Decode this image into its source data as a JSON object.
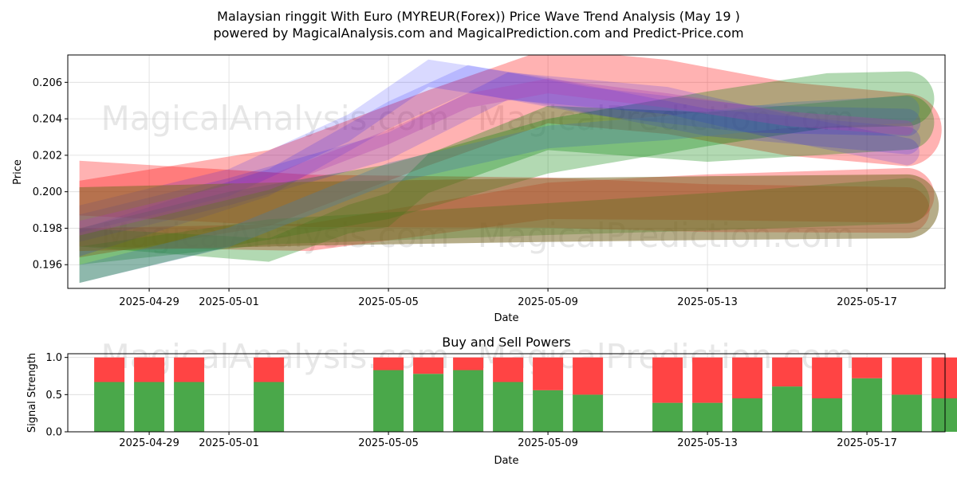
{
  "title_line1": "Malaysian ringgit With Euro (MYREUR(Forex)) Price Wave Trend Analysis (May 19 )",
  "title_line2": "powered by MagicalAnalysis.com and MagicalPrediction.com and Predict-Price.com",
  "watermarks": [
    "MagicalAnalysis.com",
    "MagicalPrediction.com"
  ],
  "colors": {
    "red": "#ff0000",
    "green": "#008000",
    "blue": "#0000ff",
    "olive": "#7a6a28",
    "steel": "#4a7aa0",
    "purple": "#b040b0",
    "buy": "#4aa84a",
    "sell": "#ff4444"
  },
  "chart_data": [
    {
      "type": "area",
      "title": "",
      "xlabel": "Date",
      "ylabel": "Price",
      "x_ticks": [
        "2025-04-29",
        "2025-05-01",
        "2025-05-05",
        "2025-05-09",
        "2025-05-13",
        "2025-05-17"
      ],
      "y_ticks": [
        "0.196",
        "0.198",
        "0.200",
        "0.202",
        "0.204",
        "0.206"
      ],
      "xlim": [
        "2025-04-26T23:00",
        "2025-05-18T23:00"
      ],
      "ylim": [
        0.1947,
        0.2075
      ],
      "grid": true,
      "series": [
        {
          "color": "red",
          "opacity": 0.3,
          "thick": [
            0.0042,
            0.004
          ],
          "x": [
            "2025-04-27T06:00",
            "2025-05-02",
            "2025-05-06",
            "2025-05-09",
            "2025-05-12",
            "2025-05-15",
            "2025-05-18"
          ],
          "y": [
            0.1985,
            0.2002,
            0.2035,
            0.2058,
            0.2052,
            0.204,
            0.2034
          ]
        },
        {
          "color": "red",
          "opacity": 0.3,
          "thick": [
            0.003,
            0.0025
          ],
          "x": [
            "2025-04-27T06:00",
            "2025-05-03",
            "2025-05-09",
            "2025-05-13",
            "2025-05-18"
          ],
          "y": [
            0.2002,
            0.1995,
            0.1994,
            0.1991,
            0.199
          ]
        },
        {
          "color": "red",
          "opacity": 0.3,
          "thick": [
            0.001,
            0.003
          ],
          "x": [
            "2025-04-27T06:00",
            "2025-05-03",
            "2025-05-09",
            "2025-05-13",
            "2025-05-18"
          ],
          "y": [
            0.1975,
            0.1975,
            0.1995,
            0.1997,
            0.1998
          ]
        },
        {
          "color": "green",
          "opacity": 0.3,
          "thick": [
            0.003,
            0.003
          ],
          "x": [
            "2025-04-27T06:00",
            "2025-05-01",
            "2025-05-05",
            "2025-05-09",
            "2025-05-13",
            "2025-05-16",
            "2025-05-18"
          ],
          "y": [
            0.1965,
            0.1985,
            0.2,
            0.2025,
            0.204,
            0.205,
            0.2051
          ]
        },
        {
          "color": "green",
          "opacity": 0.3,
          "thick": [
            0.001,
            0.0025
          ],
          "x": [
            "2025-04-27T06:00",
            "2025-05-02",
            "2025-05-09",
            "2025-05-14",
            "2025-05-18"
          ],
          "y": [
            0.1965,
            0.1978,
            0.1985,
            0.199,
            0.1995
          ]
        },
        {
          "color": "green",
          "opacity": 0.3,
          "thick": [
            0.001,
            0.003
          ],
          "x": [
            "2025-04-27T06:00",
            "2025-05-02",
            "2025-05-04",
            "2025-05-05",
            "2025-05-06",
            "2025-05-09",
            "2025-05-13",
            "2025-05-18"
          ],
          "y": [
            0.1975,
            0.1968,
            0.1985,
            0.199,
            0.201,
            0.2035,
            0.203,
            0.2038
          ]
        },
        {
          "color": "blue",
          "opacity": 0.15,
          "thick": [
            0.0015,
            0.0015
          ],
          "x": [
            "2025-04-27T06:00",
            "2025-05-01",
            "2025-05-04",
            "2025-05-06",
            "2025-05-09",
            "2025-05-13",
            "2025-05-18"
          ],
          "y": [
            0.1985,
            0.2005,
            0.2035,
            0.2065,
            0.2055,
            0.2038,
            0.2028
          ]
        },
        {
          "color": "blue",
          "opacity": 0.15,
          "thick": [
            0.0015,
            0.0015
          ],
          "x": [
            "2025-04-27T06:00",
            "2025-05-02",
            "2025-05-05",
            "2025-05-07",
            "2025-05-10",
            "2025-05-14",
            "2025-05-18"
          ],
          "y": [
            0.1972,
            0.2005,
            0.2042,
            0.2062,
            0.205,
            0.204,
            0.2038
          ]
        },
        {
          "color": "blue",
          "opacity": 0.15,
          "thick": [
            0.0015,
            0.0015
          ],
          "x": [
            "2025-04-27T06:00",
            "2025-05-01",
            "2025-05-05",
            "2025-05-08",
            "2025-05-12",
            "2025-05-15",
            "2025-05-18"
          ],
          "y": [
            0.198,
            0.2,
            0.2025,
            0.2058,
            0.205,
            0.2035,
            0.2022
          ]
        },
        {
          "color": "olive",
          "opacity": 0.55,
          "thick": [
            0.0035,
            0.0035
          ],
          "x": [
            "2025-04-27T06:00",
            "2025-05-03",
            "2025-05-09",
            "2025-05-13",
            "2025-05-18"
          ],
          "y": [
            0.1985,
            0.1988,
            0.199,
            0.1991,
            0.1992
          ]
        },
        {
          "color": "steel",
          "opacity": 0.35,
          "thick": [
            0.001,
            0.0015
          ],
          "x": [
            "2025-04-27T06:00",
            "2025-05-01",
            "2025-05-05",
            "2025-05-09",
            "2025-05-12",
            "2025-05-15",
            "2025-05-18"
          ],
          "y": [
            0.1955,
            0.1975,
            0.201,
            0.203,
            0.2035,
            0.2042,
            0.2045
          ]
        },
        {
          "color": "purple",
          "opacity": 0.3,
          "thick": [
            0.0008,
            0.0008
          ],
          "x": [
            "2025-04-27T06:00",
            "2025-05-02",
            "2025-05-05",
            "2025-05-07",
            "2025-05-09",
            "2025-05-12",
            "2025-05-15",
            "2025-05-18"
          ],
          "y": [
            0.198,
            0.2005,
            0.203,
            0.205,
            0.2058,
            0.205,
            0.204,
            0.2035
          ]
        }
      ]
    },
    {
      "type": "bar",
      "title": "Buy and Sell Powers",
      "xlabel": "Date",
      "ylabel": "Signal Strength",
      "x_ticks": [
        "2025-04-29",
        "2025-05-01",
        "2025-05-05",
        "2025-05-09",
        "2025-05-13",
        "2025-05-17"
      ],
      "y_ticks": [
        "0.0",
        "0.5",
        "1.0"
      ],
      "ylim": [
        0,
        1.05
      ],
      "dates": [
        "2025-04-28",
        "2025-04-29",
        "2025-04-30",
        "2025-05-02",
        "2025-05-05",
        "2025-05-06",
        "2025-05-07",
        "2025-05-08",
        "2025-05-09",
        "2025-05-10",
        "2025-05-12",
        "2025-05-13",
        "2025-05-14",
        "2025-05-15",
        "2025-05-16",
        "2025-05-17",
        "2025-05-18",
        "2025-05-19"
      ],
      "series": [
        {
          "name": "Buy",
          "color": "buy",
          "values": [
            0.67,
            0.67,
            0.67,
            0.67,
            0.83,
            0.78,
            0.83,
            0.67,
            0.56,
            0.5,
            0.39,
            0.39,
            0.45,
            0.61,
            0.45,
            0.72,
            0.5,
            0.45
          ]
        },
        {
          "name": "Sell",
          "color": "sell",
          "values": [
            0.33,
            0.33,
            0.33,
            0.33,
            0.17,
            0.22,
            0.17,
            0.33,
            0.44,
            0.5,
            0.61,
            0.61,
            0.55,
            0.39,
            0.55,
            0.28,
            0.5,
            0.55
          ]
        }
      ]
    }
  ]
}
